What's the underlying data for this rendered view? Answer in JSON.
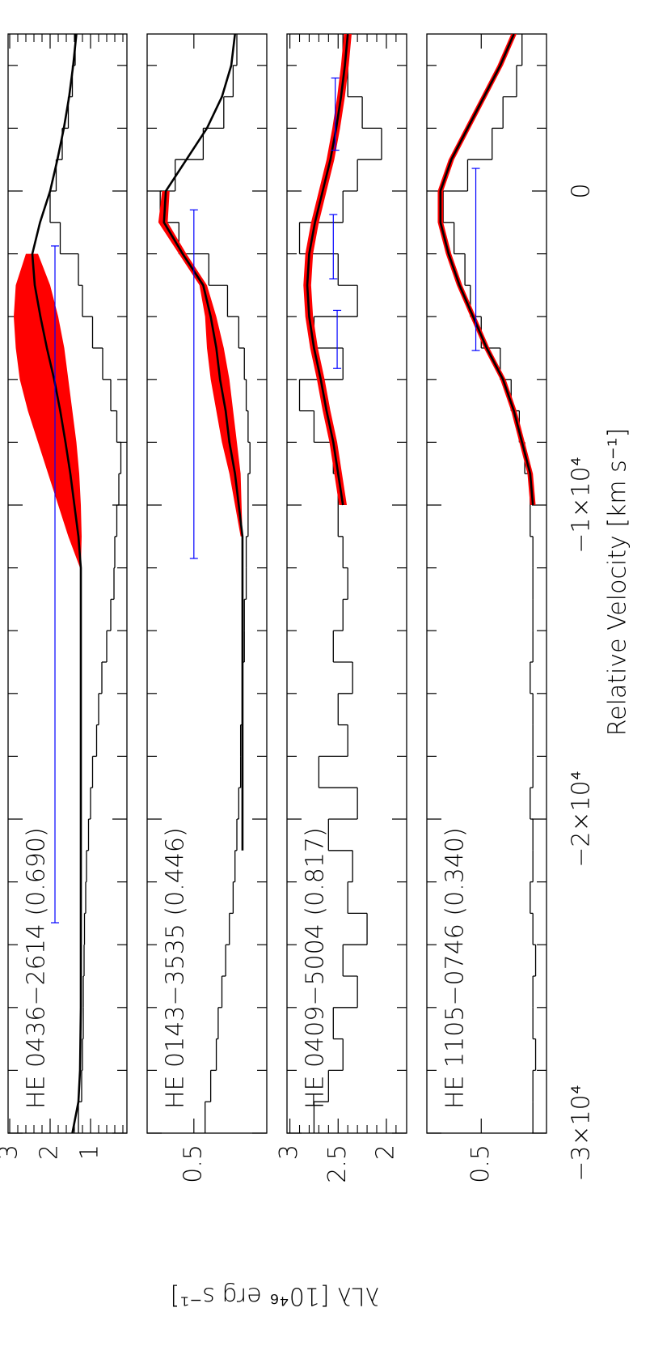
{
  "chart_data": [
    {
      "type": "line",
      "title": "HE 0436−2614 (0.690)",
      "ylabel": "λLλ [10⁴⁶ erg s⁻¹]",
      "xlim": [
        -30000,
        5000
      ],
      "ylim": [
        0.1,
        3.04
      ],
      "yticks": [
        1,
        2,
        3
      ],
      "yminorticks": [
        0.2,
        0.4,
        0.6,
        0.8,
        1.2,
        1.4,
        1.6,
        1.8,
        2.2,
        2.4,
        2.6,
        2.8
      ],
      "spectrum": {
        "color": "#000000",
        "bins": [
          -30000,
          -29000,
          -28000,
          -27000,
          -26000,
          -25000,
          -24000,
          -23000,
          -22000,
          -21000,
          -20000,
          -19000,
          -18000,
          -17000,
          -16000,
          -15000,
          -14000,
          -13000,
          -12000,
          -11000,
          -10000,
          -9000,
          -8000,
          -7000,
          -6000,
          -5000,
          -4000,
          -3000,
          -2000,
          -1000,
          0,
          1000,
          2000,
          3000,
          4000,
          5000
        ],
        "values": [
          1.3,
          1.22,
          1.2,
          1.18,
          1.18,
          1.16,
          1.15,
          1.12,
          1.1,
          1.05,
          1.0,
          0.95,
          0.85,
          0.8,
          0.72,
          0.6,
          0.5,
          0.42,
          0.4,
          0.35,
          0.3,
          0.25,
          0.35,
          0.5,
          0.7,
          0.95,
          1.2,
          1.3,
          1.75,
          2.0,
          1.85,
          1.7,
          1.55,
          1.45,
          1.38
        ]
      },
      "band": {
        "color": "#ff0000",
        "x": [
          -12000,
          -11000,
          -10000,
          -9000,
          -8000,
          -7000,
          -6000,
          -5000,
          -4000,
          -3000,
          -2000
        ],
        "low": [
          1.24,
          1.22,
          1.24,
          1.28,
          1.35,
          1.45,
          1.55,
          1.65,
          1.8,
          2.0,
          2.3
        ],
        "high": [
          1.26,
          1.55,
          1.8,
          2.05,
          2.3,
          2.55,
          2.75,
          2.85,
          2.9,
          2.85,
          2.6
        ]
      },
      "model": {
        "color": "#000000",
        "x": [
          -30000,
          -29000,
          -28000,
          -27000,
          -26000,
          -25000,
          -24000,
          -23000,
          -22000,
          -21000,
          -20000,
          -19000,
          -18000,
          -17000,
          -16000,
          -15000,
          -14000,
          -13000,
          -12000,
          -11000,
          -10000,
          -9000,
          -8000,
          -7000,
          -6000,
          -5000,
          -4000,
          -3000,
          -2000,
          -1000,
          0,
          1000,
          2000,
          3000,
          4000,
          5000
        ],
        "values": [
          1.45,
          1.3,
          1.26,
          1.25,
          1.24,
          1.24,
          1.24,
          1.24,
          1.24,
          1.24,
          1.24,
          1.24,
          1.24,
          1.24,
          1.24,
          1.24,
          1.24,
          1.24,
          1.24,
          1.3,
          1.4,
          1.5,
          1.62,
          1.75,
          1.9,
          2.08,
          2.24,
          2.38,
          2.44,
          2.25,
          2.0,
          1.82,
          1.66,
          1.53,
          1.43,
          1.35
        ]
      },
      "errorbar_color": "#0000ff",
      "errorbars": [
        {
          "x": [
            -23300,
            -1750
          ],
          "y": 1.88
        }
      ]
    },
    {
      "type": "line",
      "title": "HE 0143−3535 (0.446)",
      "xlim": [
        -30000,
        5000
      ],
      "ylim": [
        0.11,
        0.75
      ],
      "yticks": [
        0.5
      ],
      "spectrum": {
        "color": "#000000",
        "bins": [
          -30000,
          -29000,
          -28000,
          -27000,
          -26000,
          -25000,
          -24000,
          -23000,
          -22000,
          -21000,
          -20000,
          -19000,
          -18000,
          -17000,
          -16000,
          -15000,
          -14000,
          -13000,
          -12000,
          -11000,
          -10000,
          -9000,
          -8000,
          -7000,
          -6000,
          -5000,
          -4000,
          -3000,
          -2000,
          -1000,
          0,
          1000,
          2000,
          3000,
          4000,
          5000
        ],
        "values": [
          0.44,
          0.41,
          0.38,
          0.37,
          0.35,
          0.33,
          0.31,
          0.29,
          0.28,
          0.27,
          0.26,
          0.25,
          0.25,
          0.24,
          0.24,
          0.23,
          0.23,
          0.22,
          0.22,
          0.21,
          0.21,
          0.2,
          0.21,
          0.22,
          0.23,
          0.26,
          0.32,
          0.42,
          0.58,
          0.68,
          0.6,
          0.45,
          0.34,
          0.29,
          0.27
        ]
      },
      "band": {
        "color": "#ff0000",
        "x": [
          -11000,
          -10000,
          -9000,
          -8000,
          -7000,
          -6000,
          -5000,
          -4000,
          -3000,
          -2000,
          -1000,
          0
        ],
        "low": [
          0.24,
          0.245,
          0.25,
          0.27,
          0.29,
          0.31,
          0.34,
          0.38,
          0.43,
          0.54,
          0.64,
          0.63
        ],
        "high": [
          0.25,
          0.28,
          0.31,
          0.35,
          0.38,
          0.41,
          0.43,
          0.44,
          0.47,
          0.58,
          0.69,
          0.67
        ]
      },
      "model": {
        "color": "#000000",
        "x": [
          -21000,
          -20000,
          -19000,
          -18000,
          -17000,
          -16000,
          -15000,
          -14000,
          -13000,
          -12000,
          -11000,
          -10000,
          -9000,
          -8000,
          -7000,
          -6000,
          -5000,
          -4000,
          -3000,
          -2000,
          -1000,
          0,
          1000,
          2000,
          3000,
          4000,
          5000
        ],
        "values": [
          0.24,
          0.24,
          0.24,
          0.24,
          0.24,
          0.24,
          0.24,
          0.24,
          0.24,
          0.24,
          0.24,
          0.26,
          0.28,
          0.31,
          0.33,
          0.36,
          0.38,
          0.41,
          0.45,
          0.56,
          0.66,
          0.65,
          0.54,
          0.43,
          0.35,
          0.3,
          0.28
        ]
      },
      "errorbar_color": "#0000ff",
      "errorbars": [
        {
          "x": [
            -11700,
            -600
          ],
          "y": 0.5
        }
      ]
    },
    {
      "type": "line",
      "title": "HE 0409−5004 (0.817)",
      "xlim": [
        -30000,
        5000
      ],
      "ylim": [
        1.79,
        3.03
      ],
      "yticks": [
        2,
        2.5,
        3
      ],
      "yminorticks": [
        1.9,
        2.1,
        2.2,
        2.3,
        2.4,
        2.6,
        2.7,
        2.8,
        2.9
      ],
      "spectrum": {
        "color": "#000000",
        "bins": [
          -30000,
          -29000,
          -28000,
          -27000,
          -26000,
          -25000,
          -24000,
          -23000,
          -22000,
          -21000,
          -20000,
          -19000,
          -18000,
          -17000,
          -16000,
          -15000,
          -14000,
          -13000,
          -12000,
          -11000,
          -10000,
          -9000,
          -8000,
          -7000,
          -6000,
          -5000,
          -4000,
          -3000,
          -2000,
          -1000,
          0,
          1000,
          2000,
          3000,
          4000,
          5000
        ],
        "values": [
          2.75,
          2.6,
          2.45,
          2.55,
          2.3,
          2.45,
          2.2,
          2.4,
          2.35,
          2.6,
          2.3,
          2.7,
          2.4,
          2.5,
          2.35,
          2.55,
          2.45,
          2.4,
          2.45,
          2.5,
          2.5,
          2.55,
          2.75,
          2.9,
          2.45,
          2.75,
          2.3,
          2.5,
          2.9,
          2.45,
          2.3,
          2.05,
          2.25,
          2.4,
          2.45
        ]
      },
      "band": {
        "color": "#ff0000",
        "x": [
          -10000,
          -9000,
          -8000,
          -7000,
          -6000,
          -5000,
          -4000,
          -3000,
          -2000,
          -1000,
          0,
          1000,
          2000,
          3000,
          4000,
          5000
        ],
        "low": [
          2.41,
          2.46,
          2.51,
          2.58,
          2.64,
          2.71,
          2.76,
          2.78,
          2.76,
          2.7,
          2.62,
          2.54,
          2.48,
          2.43,
          2.39,
          2.36
        ],
        "high": [
          2.49,
          2.54,
          2.59,
          2.66,
          2.72,
          2.79,
          2.84,
          2.86,
          2.84,
          2.78,
          2.7,
          2.62,
          2.56,
          2.51,
          2.47,
          2.44
        ]
      },
      "model": {
        "color": "#000000",
        "x": [
          -10000,
          -9000,
          -8000,
          -7000,
          -6000,
          -5000,
          -4000,
          -3000,
          -2000,
          -1000,
          0,
          1000,
          2000,
          3000,
          4000,
          5000
        ],
        "values": [
          2.45,
          2.5,
          2.55,
          2.62,
          2.68,
          2.75,
          2.8,
          2.82,
          2.8,
          2.74,
          2.66,
          2.58,
          2.52,
          2.47,
          2.43,
          2.4
        ]
      },
      "errorbar_color": "#0000ff",
      "errorbars": [
        {
          "x": [
            -5650,
            -3800
          ],
          "y": 2.51
        },
        {
          "x": [
            -2800,
            -750
          ],
          "y": 2.55
        },
        {
          "x": [
            1300,
            3600
          ],
          "y": 2.53
        }
      ]
    },
    {
      "type": "line",
      "title": "HE 1105−0746 (0.340)",
      "xlabel": "Relative Velocity [km s⁻¹]",
      "xlim": [
        -30000,
        5000
      ],
      "ylim": [
        0.26,
        0.7
      ],
      "yticks": [
        0.5
      ],
      "xticks": [
        {
          "value": -30000,
          "label": "−3×10⁴"
        },
        {
          "value": -20000,
          "label": "−2×10⁴"
        },
        {
          "value": -10000,
          "label": "−1×10⁴"
        },
        0
      ],
      "xminorticks": [
        -28000,
        -26000,
        -24000,
        -22000,
        -18000,
        -16000,
        -14000,
        -12000,
        -8000,
        -6000,
        -4000,
        -2000,
        2000,
        4000
      ],
      "spectrum": {
        "color": "#000000",
        "bins": [
          -30000,
          -29000,
          -28000,
          -27000,
          -26000,
          -25000,
          -24000,
          -23000,
          -22000,
          -21000,
          -20000,
          -19000,
          -18000,
          -17000,
          -16000,
          -15000,
          -14000,
          -13000,
          -12000,
          -11000,
          -10000,
          -9000,
          -8000,
          -7000,
          -6000,
          -5000,
          -4000,
          -3000,
          -2000,
          -1000,
          0,
          1000,
          2000,
          3000,
          4000,
          5000
        ],
        "values": [
          0.31,
          0.31,
          0.3,
          0.31,
          0.31,
          0.3,
          0.31,
          0.32,
          0.31,
          0.31,
          0.32,
          0.31,
          0.31,
          0.31,
          0.32,
          0.31,
          0.31,
          0.31,
          0.31,
          0.32,
          0.32,
          0.34,
          0.36,
          0.39,
          0.43,
          0.5,
          0.54,
          0.56,
          0.6,
          0.64,
          0.55,
          0.46,
          0.42,
          0.37,
          0.35
        ]
      },
      "band": {
        "color": "#ff0000",
        "x": [
          -10000,
          -9000,
          -8000,
          -7000,
          -6000,
          -5000,
          -4000,
          -3000,
          -2000,
          -1000,
          0,
          1000,
          2000,
          3000,
          4000,
          5000
        ],
        "low": [
          0.3,
          0.31,
          0.34,
          0.37,
          0.41,
          0.47,
          0.52,
          0.57,
          0.61,
          0.64,
          0.64,
          0.6,
          0.54,
          0.48,
          0.42,
          0.37
        ],
        "high": [
          0.32,
          0.33,
          0.36,
          0.39,
          0.43,
          0.49,
          0.54,
          0.59,
          0.63,
          0.66,
          0.66,
          0.62,
          0.56,
          0.5,
          0.44,
          0.39
        ]
      },
      "model": {
        "color": "#000000",
        "x": [
          -10000,
          -9000,
          -8000,
          -7000,
          -6000,
          -5000,
          -4000,
          -3000,
          -2000,
          -1000,
          0,
          1000,
          2000,
          3000,
          4000,
          5000
        ],
        "values": [
          0.31,
          0.32,
          0.35,
          0.38,
          0.42,
          0.48,
          0.53,
          0.58,
          0.62,
          0.65,
          0.65,
          0.61,
          0.55,
          0.49,
          0.43,
          0.38
        ]
      },
      "errorbar_color": "#0000ff",
      "errorbars": [
        {
          "x": [
            -5080,
            720
          ],
          "y": 0.52
        }
      ]
    }
  ]
}
